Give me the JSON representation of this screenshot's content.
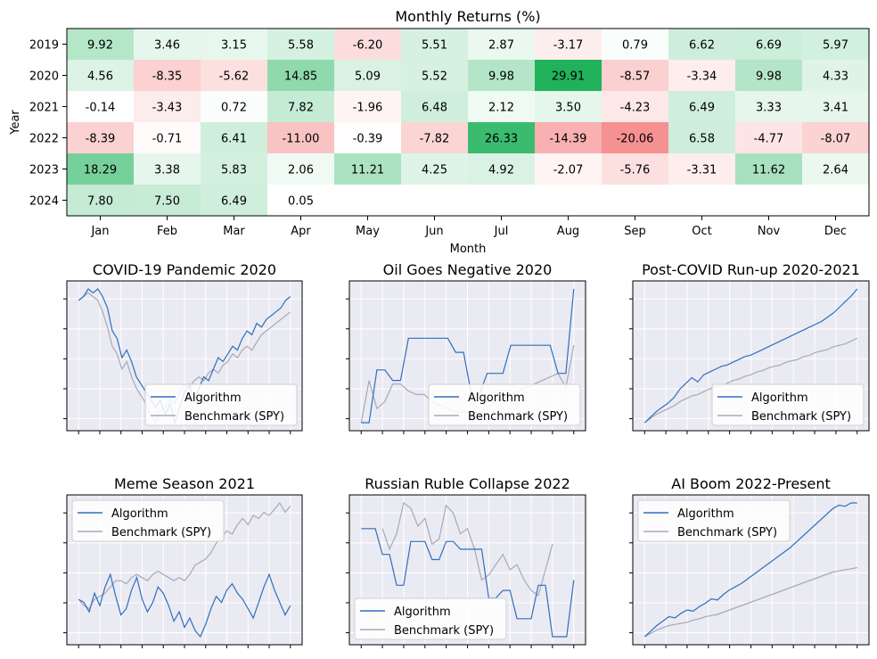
{
  "chart_data": [
    {
      "type": "heatmap",
      "title": "Monthly Returns (%)",
      "xlabel": "Month",
      "ylabel": "Year",
      "months": [
        "Jan",
        "Feb",
        "Mar",
        "Apr",
        "May",
        "Jun",
        "Jul",
        "Aug",
        "Sep",
        "Oct",
        "Nov",
        "Dec"
      ],
      "years": [
        "2019",
        "2020",
        "2021",
        "2022",
        "2023",
        "2024"
      ],
      "values": [
        [
          "9.92",
          "3.46",
          "3.15",
          "5.58",
          "-6.20",
          "5.51",
          "2.87",
          "-3.17",
          "0.79",
          "6.62",
          "6.69",
          "5.97"
        ],
        [
          "4.56",
          "-8.35",
          "-5.62",
          "14.85",
          "5.09",
          "5.52",
          "9.98",
          "29.91",
          "-8.57",
          "-3.34",
          "9.98",
          "4.33"
        ],
        [
          "-0.14",
          "-3.43",
          "0.72",
          "7.82",
          "-1.96",
          "6.48",
          "2.12",
          "3.50",
          "-4.23",
          "6.49",
          "3.33",
          "3.41"
        ],
        [
          "-8.39",
          "-0.71",
          "6.41",
          "-11.00",
          "-0.39",
          "-7.82",
          "26.33",
          "-14.39",
          "-20.06",
          "6.58",
          "-4.77",
          "-8.07"
        ],
        [
          "18.29",
          "3.38",
          "5.83",
          "2.06",
          "11.21",
          "4.25",
          "4.92",
          "-2.07",
          "-5.76",
          "-3.31",
          "11.62",
          "2.64"
        ],
        [
          "7.80",
          "7.50",
          "6.49",
          "0.05",
          null,
          null,
          null,
          null,
          null,
          null,
          null,
          null
        ]
      ],
      "colors": {
        "positive": "#1fb25a",
        "negative": "#f05b5b",
        "neutral": "#ffffff"
      }
    },
    {
      "type": "line",
      "title": "COVID-19 Pandemic 2020",
      "legend_position": "lower-right",
      "grid": true,
      "series": [
        {
          "name": "Algorithm",
          "color": "#2f6fbd",
          "values": [
            100,
            101,
            103,
            102,
            103,
            101,
            98,
            92,
            90,
            85,
            87,
            84,
            80,
            78,
            76,
            74,
            72,
            74,
            70,
            73,
            68,
            72,
            76,
            78,
            74,
            77,
            80,
            79,
            82,
            85,
            84,
            86,
            88,
            87,
            90,
            92,
            91,
            94,
            93,
            95,
            96,
            97,
            98,
            100,
            101
          ]
        },
        {
          "name": "Benchmark (SPY)",
          "color": "#a8a8ba",
          "values": [
            100,
            101,
            102,
            101,
            100,
            97,
            93,
            88,
            86,
            82,
            84,
            80,
            77,
            75,
            73,
            70,
            68,
            71,
            72,
            74,
            73,
            76,
            78,
            77,
            79,
            80,
            79,
            81,
            82,
            81,
            83,
            84,
            86,
            85,
            87,
            88,
            87,
            89,
            91,
            92,
            93,
            94,
            95,
            96,
            97
          ]
        }
      ]
    },
    {
      "type": "line",
      "title": "Oil Goes Negative 2020",
      "legend_position": "lower-right",
      "grid": true,
      "series": [
        {
          "name": "Algorithm",
          "color": "#2f6fbd",
          "values": [
            60,
            60,
            75,
            75,
            72,
            72,
            84,
            84,
            84,
            84,
            84,
            84,
            80,
            80,
            68,
            68,
            74,
            74,
            74,
            82,
            82,
            82,
            82,
            82,
            82,
            74,
            74,
            98
          ]
        },
        {
          "name": "Benchmark (SPY)",
          "color": "#a8a8ba",
          "values": [
            60,
            72,
            64,
            66,
            71,
            71,
            69,
            68,
            68,
            66,
            65,
            64,
            63,
            63,
            63,
            63,
            64,
            66,
            67,
            68,
            69,
            70,
            71,
            72,
            73,
            74,
            70,
            82
          ]
        }
      ]
    },
    {
      "type": "line",
      "title": "Post-COVID Run-up 2020-2021",
      "legend_position": "lower-right",
      "grid": true,
      "series": [
        {
          "name": "Algorithm",
          "color": "#2f6fbd",
          "values": [
            100,
            104,
            108,
            111,
            114,
            118,
            124,
            128,
            132,
            129,
            134,
            136,
            138,
            140,
            141,
            143,
            145,
            147,
            148,
            150,
            152,
            154,
            156,
            158,
            160,
            162,
            164,
            166,
            168,
            170,
            172,
            175,
            178,
            182,
            186,
            190,
            195
          ]
        },
        {
          "name": "Benchmark (SPY)",
          "color": "#a8a8ba",
          "values": [
            100,
            103,
            106,
            108,
            110,
            112,
            115,
            117,
            119,
            120,
            122,
            124,
            125,
            126,
            128,
            130,
            131,
            133,
            134,
            136,
            137,
            139,
            140,
            141,
            143,
            144,
            145,
            147,
            148,
            150,
            151,
            152,
            154,
            155,
            156,
            158,
            160
          ]
        }
      ]
    },
    {
      "type": "line",
      "title": "Meme Season 2021",
      "legend_position": "upper-left",
      "grid": true,
      "series": [
        {
          "name": "Algorithm",
          "color": "#2f6fbd",
          "values": [
            100,
            99,
            96,
            102,
            98,
            104,
            108,
            101,
            95,
            97,
            103,
            107,
            100,
            96,
            99,
            104,
            102,
            98,
            93,
            96,
            91,
            94,
            90,
            88,
            92,
            97,
            101,
            99,
            103,
            105,
            102,
            100,
            97,
            94,
            99,
            104,
            108,
            103,
            99,
            95,
            98
          ]
        },
        {
          "name": "Benchmark (SPY)",
          "color": "#a8a8ba",
          "values": [
            100,
            98,
            97,
            100,
            101,
            102,
            104,
            106,
            106,
            105,
            107,
            108,
            107,
            106,
            108,
            109,
            108,
            107,
            106,
            107,
            106,
            108,
            111,
            112,
            113,
            115,
            118,
            120,
            122,
            121,
            124,
            126,
            124,
            127,
            126,
            128,
            127,
            129,
            131,
            128,
            130
          ]
        }
      ]
    },
    {
      "type": "line",
      "title": "Russian Ruble Collapse 2022",
      "legend_position": "lower-left",
      "grid": true,
      "series": [
        {
          "name": "Algorithm",
          "color": "#2f6fbd",
          "values": [
            100,
            100,
            100,
            90,
            90,
            78,
            78,
            95,
            95,
            95,
            88,
            88,
            95,
            95,
            92,
            92,
            92,
            92,
            73,
            73,
            76,
            76,
            65,
            65,
            65,
            78,
            78,
            58,
            58,
            58,
            80
          ]
        },
        {
          "name": "Benchmark (SPY)",
          "color": "#a8a8ba",
          "values": [
            null,
            null,
            null,
            100,
            92,
            98,
            110,
            108,
            101,
            104,
            94,
            96,
            109,
            106,
            98,
            100,
            92,
            80,
            82,
            86,
            90,
            84,
            86,
            80,
            76,
            74,
            84,
            94
          ]
        }
      ]
    },
    {
      "type": "line",
      "title": "AI Boom 2022-Present",
      "legend_position": "upper-left",
      "grid": true,
      "series": [
        {
          "name": "Algorithm",
          "color": "#2f6fbd",
          "values": [
            100,
            105,
            110,
            114,
            118,
            117,
            121,
            124,
            123,
            127,
            130,
            134,
            133,
            138,
            142,
            145,
            148,
            152,
            156,
            160,
            164,
            168,
            172,
            176,
            180,
            185,
            190,
            195,
            200,
            205,
            210,
            215,
            218,
            217,
            220,
            220
          ]
        },
        {
          "name": "Benchmark (SPY)",
          "color": "#a8a8ba",
          "values": [
            100,
            103,
            106,
            108,
            110,
            111,
            112,
            113,
            115,
            116,
            118,
            119,
            120,
            122,
            124,
            126,
            128,
            130,
            132,
            134,
            136,
            138,
            140,
            142,
            144,
            146,
            148,
            150,
            152,
            154,
            156,
            158,
            159,
            160,
            161,
            162
          ]
        }
      ]
    }
  ]
}
